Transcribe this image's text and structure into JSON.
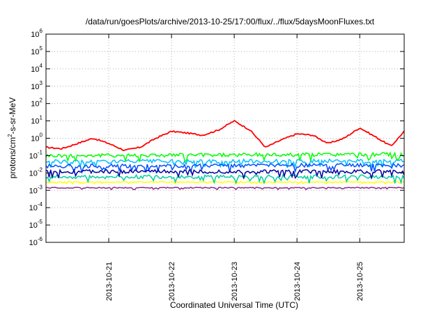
{
  "chart_data": {
    "type": "line",
    "title": "/data/run/goesPlots/archive/2013-10-25/17:00/flux/../flux/5daysMoonFluxes.txt",
    "xlabel": "Coordinated Universal Time (UTC)",
    "ylabel": {
      "prefix": "protons/cm",
      "sup": "2",
      "suffix": "-s-sr-MeV"
    },
    "y_scale": "log",
    "ylim": [
      1e-06,
      1000000.0
    ],
    "y_ticks": [
      {
        "base": "10",
        "exp": "-6"
      },
      {
        "base": "10",
        "exp": "-5"
      },
      {
        "base": "10",
        "exp": "-4"
      },
      {
        "base": "10",
        "exp": "-3"
      },
      {
        "base": "10",
        "exp": "-2"
      },
      {
        "base": "10",
        "exp": "-1"
      },
      {
        "base": "10",
        "exp": "0"
      },
      {
        "base": "10",
        "exp": "1"
      },
      {
        "base": "10",
        "exp": "2"
      },
      {
        "base": "10",
        "exp": "3"
      },
      {
        "base": "10",
        "exp": "4"
      },
      {
        "base": "10",
        "exp": "5"
      },
      {
        "base": "10",
        "exp": "6"
      }
    ],
    "xlim": [
      "2013-10-20 00:00",
      "2013-10-25 17:00"
    ],
    "x_ticks": [
      "2013-10-21",
      "2013-10-22",
      "2013-10-23",
      "2013-10-24",
      "2013-10-25"
    ],
    "grid": true,
    "series": [
      {
        "color": "#ff0000",
        "x": [
          "2013-10-20 00:00",
          "2013-10-20 06:00",
          "2013-10-20 12:00",
          "2013-10-20 18:00",
          "2013-10-21 00:00",
          "2013-10-21 06:00",
          "2013-10-21 12:00",
          "2013-10-21 18:00",
          "2013-10-22 00:00",
          "2013-10-22 06:00",
          "2013-10-22 12:00",
          "2013-10-22 18:00",
          "2013-10-23 00:00",
          "2013-10-23 06:00",
          "2013-10-23 12:00",
          "2013-10-23 18:00",
          "2013-10-24 00:00",
          "2013-10-24 06:00",
          "2013-10-24 12:00",
          "2013-10-24 18:00",
          "2013-10-25 00:00",
          "2013-10-25 06:00",
          "2013-10-25 12:00",
          "2013-10-25 17:00"
        ],
        "y": [
          0.3,
          0.25,
          0.5,
          1.0,
          0.5,
          0.2,
          0.3,
          1.0,
          2.5,
          2.0,
          1.5,
          3.0,
          10.0,
          3.0,
          0.3,
          0.8,
          1.8,
          1.5,
          0.5,
          1.0,
          4.0,
          1.2,
          0.35,
          2.5
        ]
      },
      {
        "color": "#00ff00",
        "x": [
          "2013-10-20 00:00",
          "2013-10-25 17:00"
        ],
        "y": [
          0.1,
          0.12
        ]
      },
      {
        "color": "#00c0ff",
        "x": [
          "2013-10-20 00:00",
          "2013-10-25 17:00"
        ],
        "y": [
          0.045,
          0.05
        ]
      },
      {
        "color": "#0050ff",
        "x": [
          "2013-10-20 00:00",
          "2013-10-25 17:00"
        ],
        "y": [
          0.025,
          0.028
        ]
      },
      {
        "color": "#0000a0",
        "x": [
          "2013-10-20 00:00",
          "2013-10-25 17:00"
        ],
        "y": [
          0.012,
          0.012
        ]
      },
      {
        "color": "#00d0a0",
        "x": [
          "2013-10-20 00:00",
          "2013-10-25 17:00"
        ],
        "y": [
          0.006,
          0.006
        ]
      },
      {
        "color": "#ffff00",
        "x": [
          "2013-10-20 00:00",
          "2013-10-25 17:00"
        ],
        "y": [
          0.003,
          0.003
        ]
      },
      {
        "color": "#8b2a8b",
        "x": [
          "2013-10-20 00:00",
          "2013-10-25 17:00"
        ],
        "y": [
          0.0014,
          0.0014
        ]
      }
    ]
  }
}
